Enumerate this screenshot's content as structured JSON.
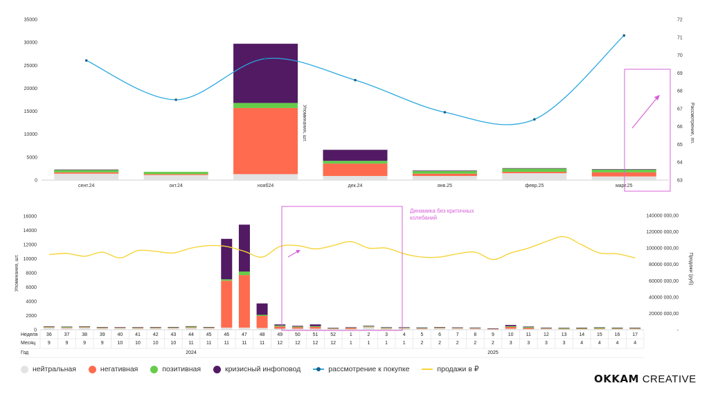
{
  "chart_data": [
    {
      "type": "bar",
      "stacked": true,
      "categories": [
        "сент.24",
        "окт.24",
        "нояб24",
        "дек.24",
        "янв.25",
        "февр.25",
        "март.25"
      ],
      "series": [
        {
          "name": "нейтральная",
          "color": "#e3e3e3",
          "values": [
            1400,
            1100,
            1300,
            900,
            900,
            1500,
            800
          ]
        },
        {
          "name": "негативная",
          "color": "#ff6b4e",
          "values": [
            300,
            200,
            14400,
            2700,
            500,
            300,
            900
          ]
        },
        {
          "name": "позитивная",
          "color": "#66cc4a",
          "values": [
            500,
            500,
            1100,
            600,
            600,
            700,
            600
          ]
        },
        {
          "name": "кризисный инфоповод",
          "color": "#521a63",
          "values": [
            100,
            0,
            12900,
            2400,
            100,
            100,
            100
          ]
        }
      ],
      "line_series": [
        {
          "name": "рассмотрение к покупке",
          "color": "#2aa8e0",
          "marker_color": "#1c5f8a",
          "axis": "right",
          "values": [
            69.7,
            67.5,
            69.8,
            68.6,
            66.8,
            66.4,
            71.1
          ]
        }
      ],
      "ylim": [
        0,
        35000
      ],
      "yticks": [
        0,
        5000,
        10000,
        15000,
        20000,
        25000,
        30000,
        35000
      ],
      "y2lim": [
        63,
        72
      ],
      "y2ticks": [
        63,
        64,
        65,
        66,
        67,
        68,
        69,
        70,
        71,
        72
      ],
      "ylabel": "Упоминания, шт.",
      "y2label": "Рассмотрение, пп.",
      "grid": false
    },
    {
      "type": "bar",
      "stacked": true,
      "weeks": [
        "36",
        "37",
        "38",
        "39",
        "40",
        "41",
        "42",
        "43",
        "44",
        "45",
        "46",
        "47",
        "48",
        "49",
        "50",
        "51",
        "52",
        "1",
        "2",
        "3",
        "4",
        "5",
        "6",
        "7",
        "8",
        "9",
        "10",
        "11",
        "12",
        "13",
        "14",
        "15",
        "16",
        "17"
      ],
      "months": [
        "9",
        "9",
        "9",
        "9",
        "10",
        "10",
        "10",
        "10",
        "11",
        "11",
        "11",
        "11",
        "11",
        "12",
        "12",
        "12",
        "12",
        "1",
        "1",
        "1",
        "1",
        "2",
        "2",
        "2",
        "2",
        "2",
        "3",
        "3",
        "3",
        "3",
        "4",
        "4",
        "4",
        "4"
      ],
      "years": [
        {
          "label": "2024",
          "from": 0,
          "to": 16
        },
        {
          "label": "2025",
          "from": 17,
          "to": 33
        }
      ],
      "row_labels": {
        "week": "Неделя",
        "month": "Месяц",
        "year": "Год"
      },
      "series": [
        {
          "name": "нейтральная",
          "color": "#e3e3e3",
          "values": [
            300,
            250,
            300,
            200,
            220,
            200,
            200,
            220,
            250,
            220,
            300,
            300,
            250,
            150,
            150,
            150,
            100,
            100,
            350,
            150,
            180,
            150,
            200,
            180,
            150,
            80,
            150,
            100,
            120,
            80,
            100,
            100,
            100,
            120
          ]
        },
        {
          "name": "негативная",
          "color": "#ff6b4e",
          "values": [
            50,
            50,
            50,
            50,
            40,
            40,
            50,
            50,
            80,
            50,
            6600,
            7400,
            1700,
            300,
            200,
            250,
            60,
            150,
            60,
            60,
            50,
            50,
            50,
            50,
            60,
            40,
            250,
            150,
            60,
            50,
            50,
            70,
            60,
            50
          ]
        },
        {
          "name": "позитивная",
          "color": "#66cc4a",
          "values": [
            100,
            120,
            100,
            100,
            80,
            100,
            100,
            100,
            150,
            100,
            200,
            500,
            150,
            150,
            100,
            100,
            80,
            60,
            120,
            100,
            100,
            100,
            100,
            80,
            80,
            60,
            100,
            120,
            100,
            120,
            120,
            150,
            120,
            100
          ]
        },
        {
          "name": "кризисный инфоповод",
          "color": "#521a63",
          "values": [
            20,
            20,
            20,
            20,
            20,
            20,
            20,
            20,
            20,
            20,
            5700,
            6600,
            1600,
            150,
            100,
            250,
            30,
            50,
            30,
            50,
            20,
            20,
            20,
            20,
            20,
            20,
            170,
            80,
            20,
            20,
            20,
            20,
            20,
            20
          ]
        }
      ],
      "line_series": [
        {
          "name": "продажи в ₽",
          "color": "#f6d438",
          "axis": "right",
          "values": [
            92000000,
            93500000,
            90000000,
            95000000,
            88000000,
            97000000,
            96000000,
            94000000,
            100000000,
            103000000,
            102000000,
            96000000,
            89000000,
            102000000,
            103000000,
            99000000,
            103000000,
            108000000,
            100000000,
            100000000,
            93000000,
            89000000,
            89000000,
            93000000,
            95000000,
            86000000,
            94000000,
            100000000,
            108000000,
            114000000,
            104000000,
            94000000,
            93000000,
            88000000
          ]
        }
      ],
      "ylim": [
        0,
        16000
      ],
      "yticks": [
        0,
        2000,
        4000,
        6000,
        8000,
        10000,
        12000,
        14000,
        16000
      ],
      "y2lim": [
        0,
        140000000
      ],
      "y2ticks": [
        "-",
        "20000 000,00",
        "40000 000,00",
        "60000 000,00",
        "80000 000,00",
        "100000 000,00",
        "120000 000,00",
        "140000 000,00"
      ],
      "ylabel": "Упоминания, шт.",
      "y2label": "Продажи (руб)",
      "grid": false
    }
  ],
  "annotation": {
    "text_line1": "Динамика без критичных",
    "text_line2": "колебаний",
    "color": "#d760d7"
  },
  "legend": [
    {
      "name": "нейтральная",
      "color": "#e3e3e3",
      "kind": "dot"
    },
    {
      "name": "негативная",
      "color": "#ff6b4e",
      "kind": "dot"
    },
    {
      "name": "позитивная",
      "color": "#66cc4a",
      "kind": "dot"
    },
    {
      "name": "кризисный инфоповод",
      "color": "#521a63",
      "kind": "dot"
    },
    {
      "name": "рассмотрение к покупке",
      "color": "#2aa8e0",
      "marker_color": "#1c5f8a",
      "kind": "line-point"
    },
    {
      "name": "продажи в ₽",
      "color": "#f6d438",
      "kind": "line"
    }
  ],
  "brand": {
    "bold": "OKKAM",
    "light": "CREATIVE"
  }
}
